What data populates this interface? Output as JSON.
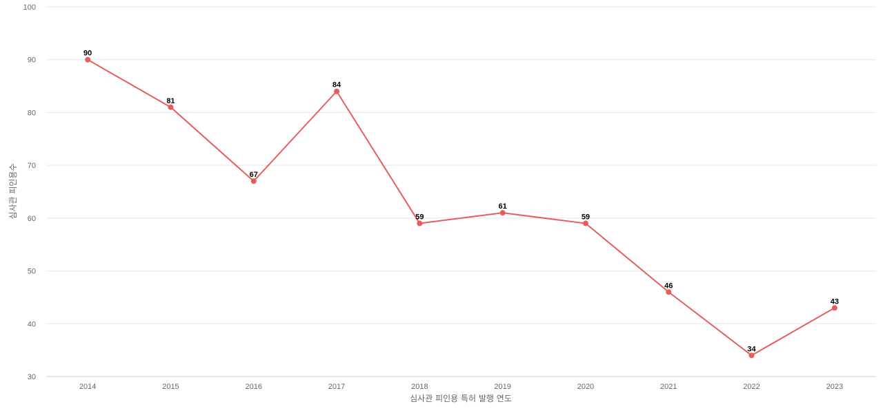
{
  "chart_data": {
    "type": "line",
    "title": "",
    "xlabel": "심사관 피인용 특허 발행 연도",
    "ylabel": "심사관 피인용수",
    "categories": [
      "2014",
      "2015",
      "2016",
      "2017",
      "2018",
      "2019",
      "2020",
      "2021",
      "2022",
      "2023"
    ],
    "series": [
      {
        "values": [
          90,
          81,
          67,
          84,
          59,
          61,
          59,
          46,
          34,
          43
        ],
        "color": "#e85c5c"
      }
    ],
    "ylim": [
      30,
      100
    ],
    "yticks": [
      "30",
      "40",
      "50",
      "60",
      "70",
      "80",
      "90",
      "100"
    ],
    "grid": true,
    "legend": "none"
  }
}
